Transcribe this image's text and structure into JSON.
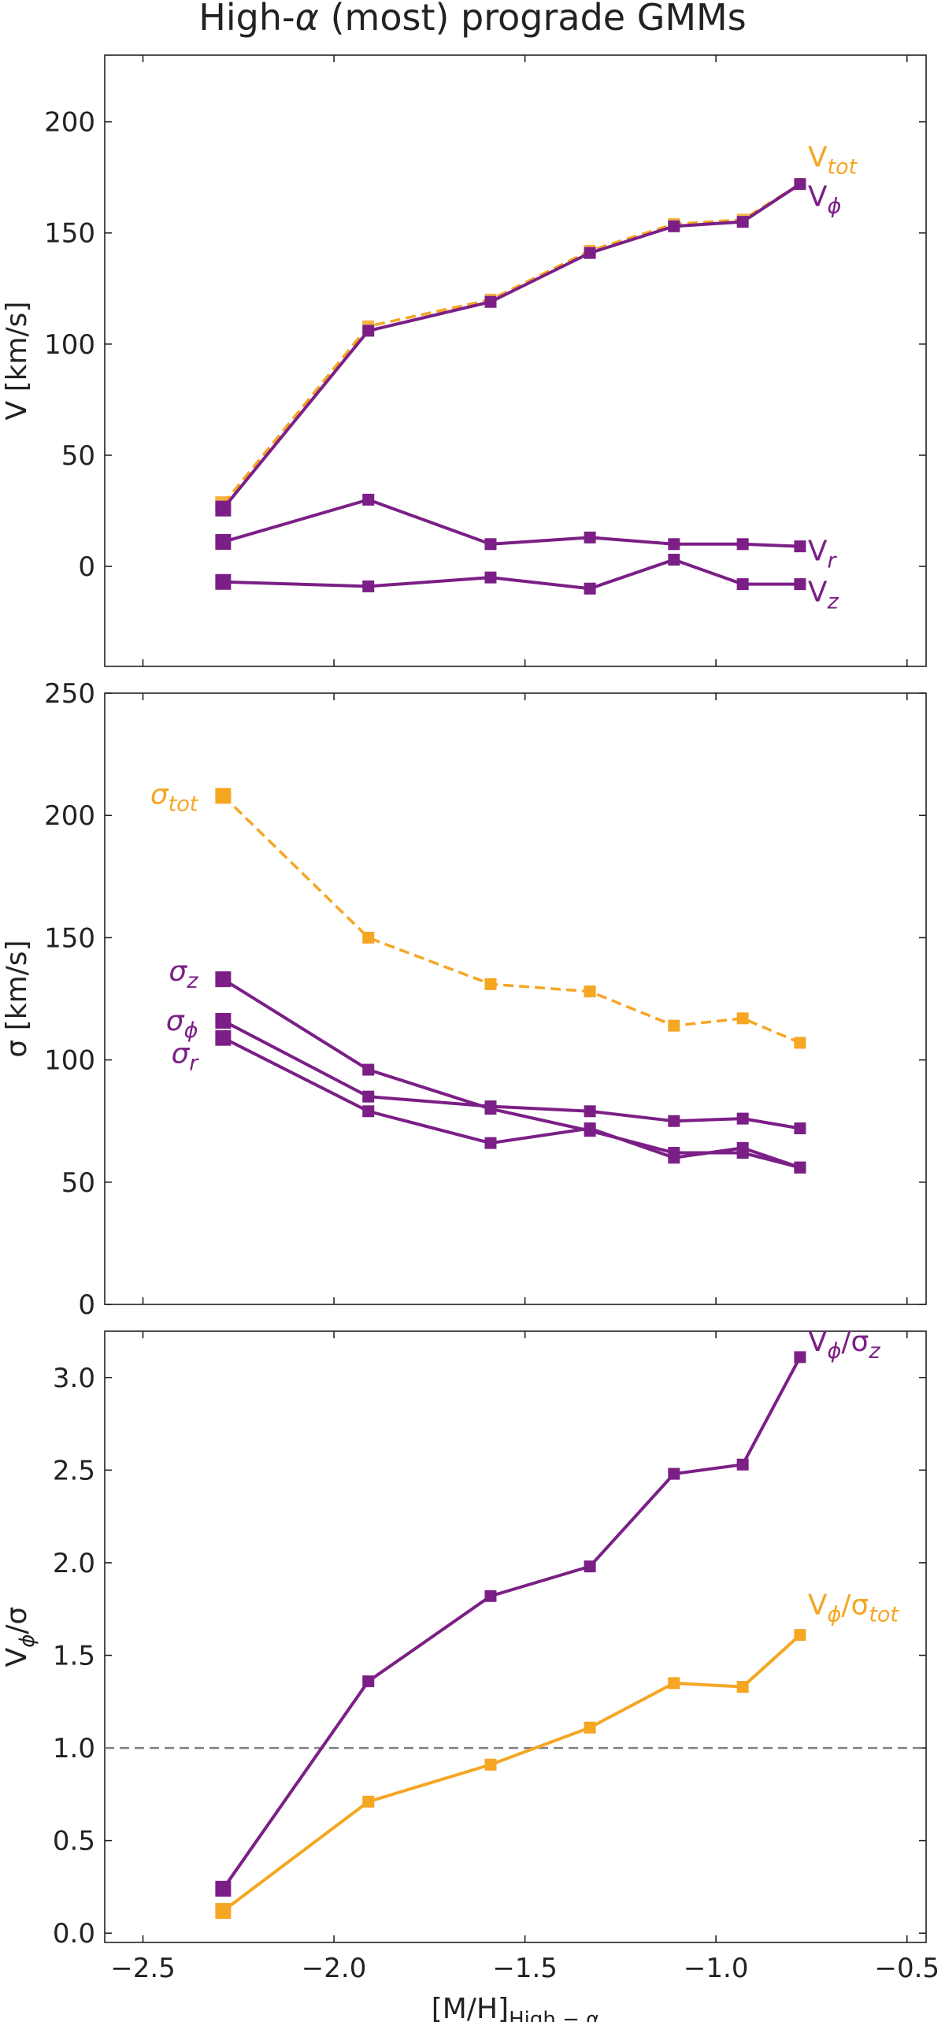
{
  "figure_title": "High-",
  "figure_title_alpha": "α",
  "figure_title_rest": " (most) prograde GMMs",
  "colors": {
    "purple": "#7b1f86",
    "orange": "#f5a623",
    "ref_line": "#808080",
    "axis": "#222222"
  },
  "chart_data": [
    {
      "type": "line",
      "panel": "top",
      "title": "High-α (most) prograde GMMs",
      "ylabel": "V [km/s]",
      "xlabel": "",
      "xlim": [
        -2.6,
        -0.45
      ],
      "ylim": [
        -45,
        230
      ],
      "xticks": [
        -2.5,
        -2.0,
        -1.5,
        -1.0,
        -0.5
      ],
      "xtick_labels": [],
      "yticks": [
        0,
        50,
        100,
        150,
        200
      ],
      "ytick_labels": [
        "0",
        "50",
        "100",
        "150",
        "200"
      ],
      "x": [
        -2.29,
        -1.91,
        -1.59,
        -1.33,
        -1.11,
        -0.93,
        -0.78
      ],
      "series": [
        {
          "name": "V_tot",
          "label": "V",
          "sub": "tot",
          "color": "orange",
          "dashed": true,
          "values": [
            28,
            108,
            120,
            142,
            154,
            156,
            172
          ]
        },
        {
          "name": "V_phi",
          "label": "V",
          "sub": "ϕ",
          "color": "purple",
          "dashed": false,
          "values": [
            26,
            106,
            119,
            141,
            153,
            155,
            172
          ]
        },
        {
          "name": "V_r",
          "label": "V",
          "sub": "r",
          "color": "purple",
          "dashed": false,
          "values": [
            11,
            30,
            10,
            13,
            10,
            10,
            9
          ]
        },
        {
          "name": "V_z",
          "label": "V",
          "sub": "z",
          "color": "purple",
          "dashed": false,
          "values": [
            -7,
            -9,
            -5,
            -10,
            3,
            -8,
            -8
          ]
        }
      ]
    },
    {
      "type": "line",
      "panel": "middle",
      "ylabel": "σ [km/s]",
      "xlabel": "",
      "xlim": [
        -2.6,
        -0.45
      ],
      "ylim": [
        0,
        250
      ],
      "xticks": [
        -2.5,
        -2.0,
        -1.5,
        -1.0,
        -0.5
      ],
      "xtick_labels": [],
      "yticks": [
        0,
        50,
        100,
        150,
        200,
        250
      ],
      "ytick_labels": [
        "0",
        "50",
        "100",
        "150",
        "200",
        "250"
      ],
      "x": [
        -2.29,
        -1.91,
        -1.59,
        -1.33,
        -1.11,
        -0.93,
        -0.78
      ],
      "series": [
        {
          "name": "sigma_tot",
          "label": "σ",
          "sub": "tot",
          "color": "orange",
          "dashed": true,
          "values": [
            208,
            150,
            131,
            128,
            114,
            117,
            107
          ]
        },
        {
          "name": "sigma_z",
          "label": "σ",
          "sub": "z",
          "color": "purple",
          "dashed": false,
          "values": [
            133,
            96,
            80,
            71,
            62,
            62,
            56
          ]
        },
        {
          "name": "sigma_phi",
          "label": "σ",
          "sub": "ϕ",
          "color": "purple",
          "dashed": false,
          "values": [
            116,
            85,
            81,
            79,
            75,
            76,
            72
          ]
        },
        {
          "name": "sigma_r",
          "label": "σ",
          "sub": "r",
          "color": "purple",
          "dashed": false,
          "values": [
            109,
            79,
            66,
            72,
            60,
            64,
            56
          ]
        }
      ]
    },
    {
      "type": "line",
      "panel": "bottom",
      "ylabel": "V",
      "ylabel_sub": "ϕ",
      "ylabel_rest": "/σ",
      "xlabel": "[M/H]",
      "xlabel_sub": "High − α",
      "xlim": [
        -2.6,
        -0.45
      ],
      "ylim": [
        -0.05,
        3.25
      ],
      "xticks": [
        -2.5,
        -2.0,
        -1.5,
        -1.0,
        -0.5
      ],
      "xtick_labels": [
        "−2.5",
        "−2.0",
        "−1.5",
        "−1.0",
        "−0.5"
      ],
      "yticks": [
        0.0,
        0.5,
        1.0,
        1.5,
        2.0,
        2.5,
        3.0
      ],
      "ytick_labels": [
        "0.0",
        "0.5",
        "1.0",
        "1.5",
        "2.0",
        "2.5",
        "3.0"
      ],
      "reference_line": 1.0,
      "x": [
        -2.29,
        -1.91,
        -1.59,
        -1.33,
        -1.11,
        -0.93,
        -0.78
      ],
      "series": [
        {
          "name": "Vphi_over_sigma_z",
          "label": "V",
          "sub": "ϕ",
          "rest": "/σ",
          "sub2": "z",
          "color": "purple",
          "dashed": false,
          "values": [
            0.24,
            1.36,
            1.82,
            1.98,
            2.48,
            2.53,
            3.11
          ]
        },
        {
          "name": "Vphi_over_sigma_tot",
          "label": "V",
          "sub": "ϕ",
          "rest": "/σ",
          "sub2": "tot",
          "color": "orange",
          "dashed": false,
          "values": [
            0.12,
            0.71,
            0.91,
            1.11,
            1.35,
            1.33,
            1.61
          ]
        }
      ]
    }
  ]
}
